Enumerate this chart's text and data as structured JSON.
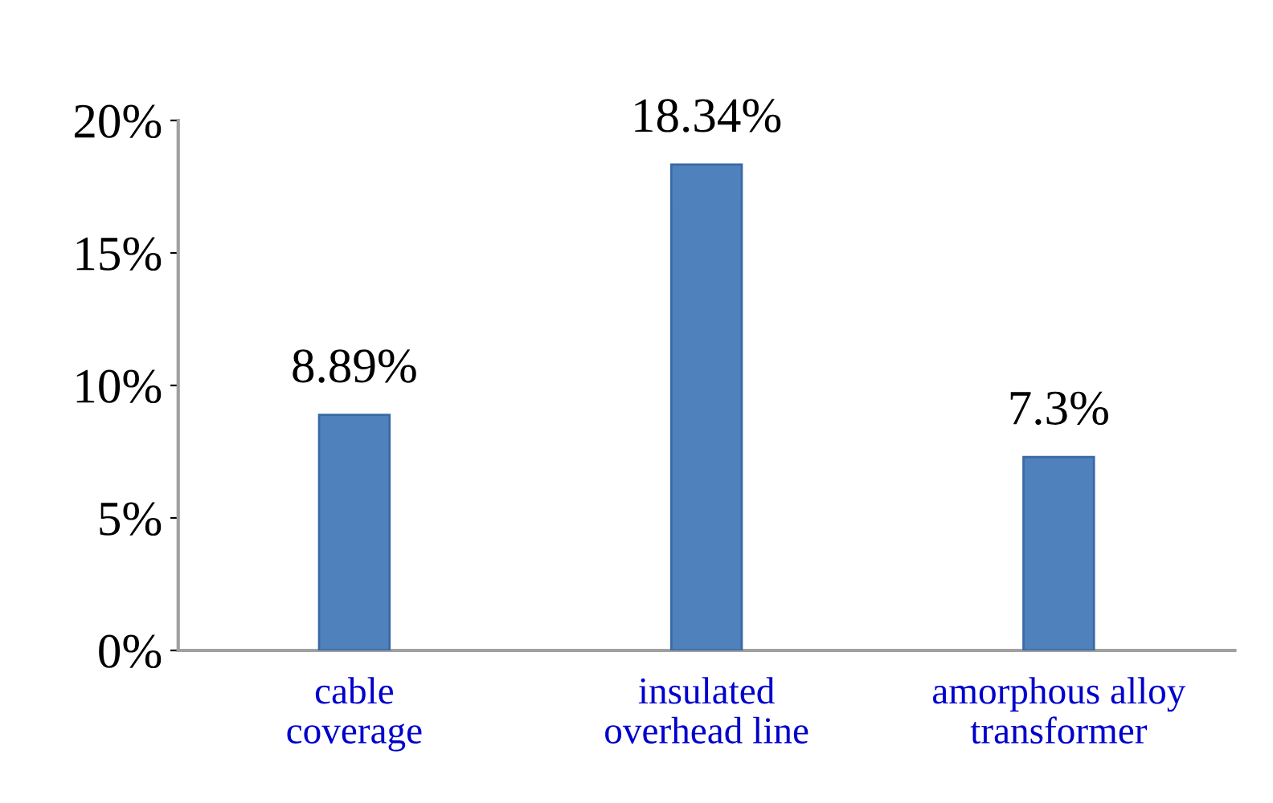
{
  "chart_data": {
    "type": "bar",
    "categories": [
      "cable\ncoverage",
      "insulated\noverhead line",
      "amorphous alloy\ntransformer"
    ],
    "values": [
      8.89,
      18.34,
      7.3
    ],
    "value_labels": [
      "8.89%",
      "18.34%",
      "7.3%"
    ],
    "color": "#4f81bd",
    "ylim": [
      0,
      20
    ],
    "yticks": [
      {
        "value": 0,
        "label": "0%"
      },
      {
        "value": 5,
        "label": "5%"
      },
      {
        "value": 10,
        "label": "10%"
      },
      {
        "value": 15,
        "label": "15%"
      },
      {
        "value": 20,
        "label": "20%"
      }
    ],
    "grid": false
  }
}
